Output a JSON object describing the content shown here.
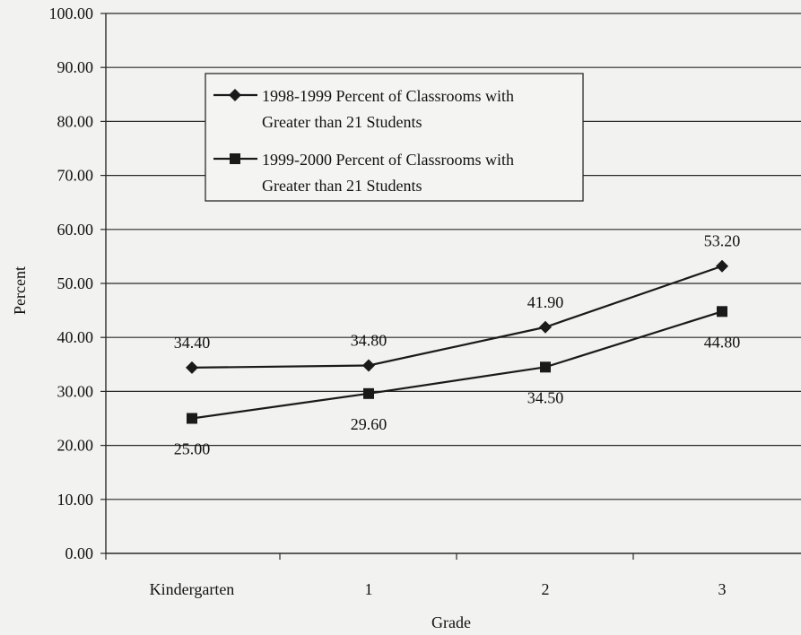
{
  "chart_data": {
    "type": "line",
    "categories": [
      "Kindergarten",
      "1",
      "2",
      "3"
    ],
    "xlabel": "Grade",
    "ylabel": "Percent",
    "ylim": [
      0,
      100
    ],
    "y_ticks": [
      "0.00",
      "10.00",
      "20.00",
      "30.00",
      "40.00",
      "50.00",
      "60.00",
      "70.00",
      "80.00",
      "90.00",
      "100.00"
    ],
    "grid": true,
    "legend_position": "top-left",
    "series": [
      {
        "name": "1998-1999 Percent of Classrooms with Greater than 21 Students",
        "legend_lines": [
          "1998-1999 Percent of Classrooms with",
          "Greater than 21 Students"
        ],
        "marker": "diamond",
        "values": [
          34.4,
          34.8,
          41.9,
          53.2
        ],
        "labels": [
          "34.40",
          "34.80",
          "41.90",
          "53.20"
        ]
      },
      {
        "name": "1999-2000 Percent of Classrooms with Greater than 21 Students",
        "legend_lines": [
          "1999-2000 Percent of Classrooms with",
          "Greater than 21 Students"
        ],
        "marker": "square",
        "values": [
          25.0,
          29.6,
          34.5,
          44.8
        ],
        "labels": [
          "25.00",
          "29.60",
          "34.50",
          "44.80"
        ]
      }
    ],
    "colors": {
      "line": "#1a1a1a",
      "grid": "#2a2a2a",
      "background": "#f2f2f0"
    }
  }
}
